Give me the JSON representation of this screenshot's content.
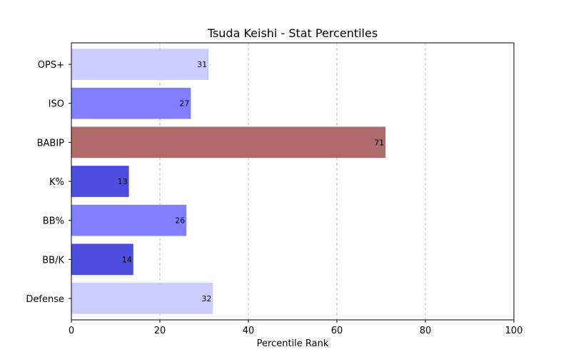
{
  "chart_data": {
    "type": "bar",
    "orientation": "horizontal",
    "title": "Tsuda Keishi - Stat Percentiles",
    "xlabel": "Percentile Rank",
    "ylabel": "",
    "xlim": [
      0,
      100
    ],
    "xticks": [
      "0",
      "20",
      "40",
      "60",
      "80",
      "100"
    ],
    "grid": "x-dashed",
    "categories": [
      "OPS+",
      "ISO",
      "BABIP",
      "K%",
      "BB%",
      "BB/K",
      "Defense"
    ],
    "values": [
      31,
      27,
      71,
      13,
      26,
      14,
      32
    ],
    "colors": [
      "#ccccff",
      "#8080ff",
      "#b06b6b",
      "#4d4ddf",
      "#8080ff",
      "#4d4ddf",
      "#ccccff"
    ]
  }
}
